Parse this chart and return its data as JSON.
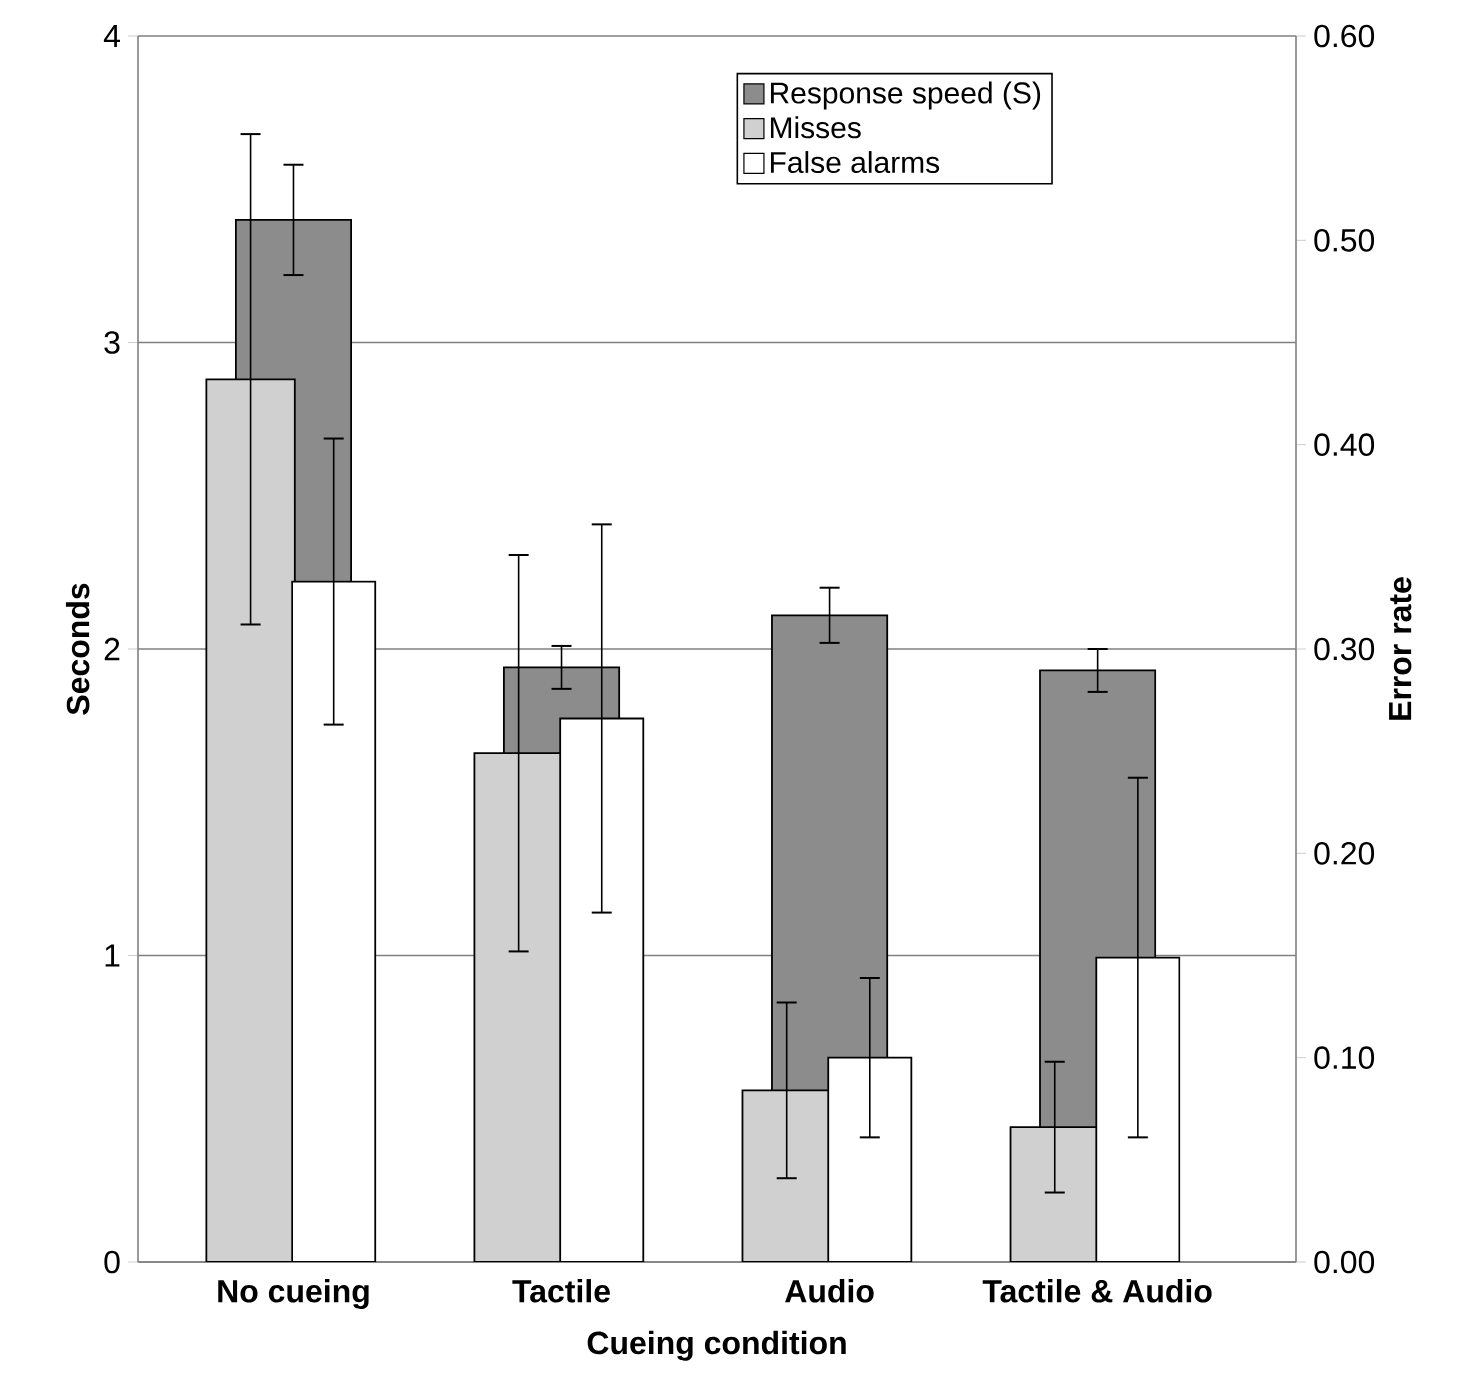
{
  "chart_data": {
    "type": "bar",
    "xlabel": "Cueing condition",
    "ylabel": "Seconds",
    "y2label": "Error rate",
    "categories": [
      "No cueing",
      "Tactile",
      "Audio",
      "Tactile & Audio"
    ],
    "series": [
      {
        "name": "Response speed (S)",
        "color": "#8c8c8c",
        "values": [
          3.4,
          1.94,
          2.11,
          1.93
        ],
        "errors": [
          0.18,
          0.07,
          0.09,
          0.07
        ]
      },
      {
        "name": "Misses",
        "color": "#d0d0d0",
        "axis": "y2",
        "values": [
          0.432,
          0.249,
          0.084,
          0.066
        ],
        "errors": [
          0.12,
          0.097,
          0.043,
          0.032
        ]
      },
      {
        "name": "False alarms",
        "color": "#ffffff",
        "axis": "y2",
        "values": [
          0.333,
          0.266,
          0.1,
          0.149
        ],
        "errors": [
          0.07,
          0.095,
          0.039,
          0.088
        ]
      }
    ],
    "ylim": [
      0,
      4
    ],
    "yticks": [
      0,
      1,
      2,
      3,
      4
    ],
    "y2lim": [
      0,
      0.6
    ],
    "y2ticks": [
      {
        "value": 0,
        "label": "0.00"
      },
      {
        "value": 0.1,
        "label": "0.10"
      },
      {
        "value": 0.2,
        "label": "0.20"
      },
      {
        "value": 0.3,
        "label": "0.30"
      },
      {
        "value": 0.4,
        "label": "0.40"
      },
      {
        "value": 0.5,
        "label": "0.50"
      },
      {
        "value": 0.6,
        "label": "0.60"
      }
    ],
    "grid": "y",
    "legend": "top right"
  }
}
